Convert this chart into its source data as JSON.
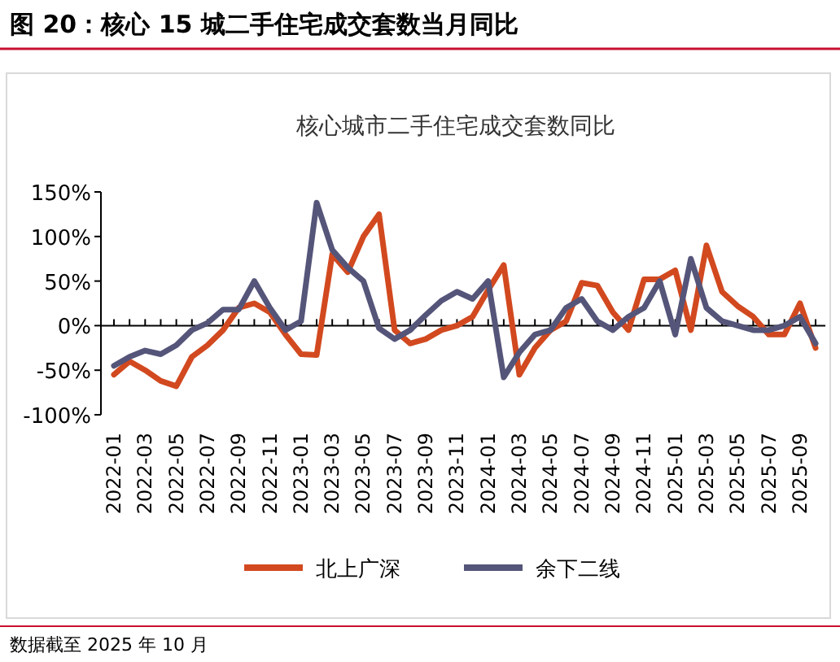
{
  "chart_data": {
    "type": "line",
    "title": "核心城市二手住宅成交套数同比",
    "annotations": [
      "图 20：核心 15 城二手住宅成交套数当月同比",
      "数据截至 2025 年 10 月"
    ],
    "categories": [
      "2022-01",
      null,
      "2022-03",
      null,
      "2022-05",
      null,
      "2022-07",
      null,
      "2022-09",
      null,
      "2022-11",
      null,
      "2023-01",
      null,
      "2023-03",
      null,
      "2023-05",
      null,
      "2023-07",
      null,
      "2023-09",
      null,
      "2023-11",
      null,
      "2024-01",
      null,
      "2024-03",
      null,
      "2024-05",
      null,
      "2024-07",
      null,
      "2024-09",
      null,
      "2024-11",
      null,
      "2025-01",
      null,
      "2025-03",
      null,
      "2025-05",
      null,
      "2025-07",
      null,
      "2025-09",
      null
    ],
    "series": [
      {
        "name": "北上广深",
        "color": "#d2491f",
        "values": [
          -55,
          -40,
          -50,
          -62,
          -68,
          -35,
          -22,
          -5,
          20,
          25,
          15,
          -10,
          -32,
          -33,
          80,
          60,
          100,
          125,
          -5,
          -20,
          -15,
          -5,
          0,
          10,
          40,
          68,
          -55,
          -25,
          -5,
          5,
          48,
          45,
          15,
          -5,
          52,
          52,
          62,
          -5,
          90,
          38,
          22,
          10,
          -10,
          -10,
          25,
          -25
        ]
      },
      {
        "name": "余下二线",
        "color": "#55557a",
        "values": [
          -45,
          -35,
          -28,
          -32,
          -22,
          -5,
          3,
          18,
          18,
          50,
          20,
          -5,
          5,
          138,
          85,
          65,
          50,
          -3,
          -15,
          -5,
          12,
          28,
          38,
          30,
          50,
          -58,
          -30,
          -10,
          -5,
          20,
          30,
          5,
          -5,
          10,
          20,
          50,
          -10,
          75,
          20,
          5,
          0,
          -5,
          -5,
          0,
          10,
          -20
        ]
      }
    ],
    "ylim": [
      -100,
      150
    ],
    "yticks": [
      {
        "value": -100,
        "label": "-100%"
      },
      {
        "value": -50,
        "label": "-50%"
      },
      {
        "value": 0,
        "label": "0%"
      },
      {
        "value": 50,
        "label": "50%"
      },
      {
        "value": 100,
        "label": "100%"
      },
      {
        "value": 150,
        "label": "150%"
      }
    ],
    "legend": "bottom",
    "marker": "none",
    "line_style": "solid"
  }
}
